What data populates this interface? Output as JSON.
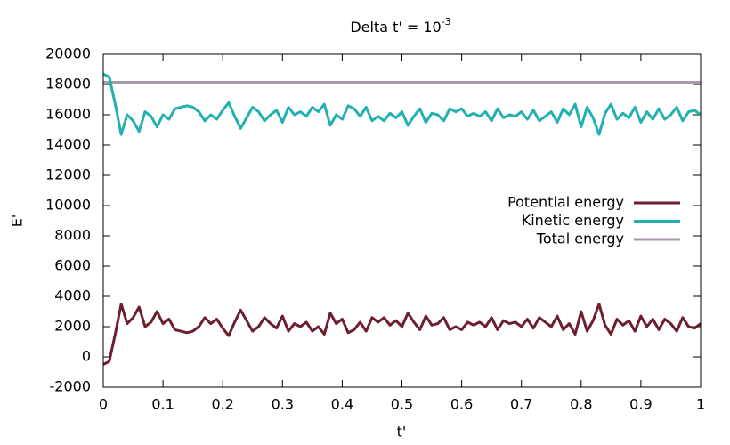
{
  "chart_data": {
    "type": "line",
    "title": {
      "text": "Delta t' = 10",
      "superscript": "-3"
    },
    "x_label": "t'",
    "y_label": "E'",
    "xlim": [
      0,
      1
    ],
    "ylim": [
      -2000,
      20000
    ],
    "xticks": [
      0,
      0.1,
      0.2,
      0.3,
      0.4,
      0.5,
      0.6,
      0.7,
      0.8,
      0.9,
      1
    ],
    "yticks": [
      -2000,
      0,
      2000,
      4000,
      6000,
      8000,
      10000,
      12000,
      14000,
      16000,
      18000,
      20000
    ],
    "legend": "right",
    "x": [
      0,
      0.01,
      0.02,
      0.03,
      0.04,
      0.05,
      0.06,
      0.07,
      0.08,
      0.09,
      0.1,
      0.11,
      0.12,
      0.13,
      0.14,
      0.15,
      0.16,
      0.17,
      0.18,
      0.19,
      0.2,
      0.21,
      0.22,
      0.23,
      0.24,
      0.25,
      0.26,
      0.27,
      0.28,
      0.29,
      0.3,
      0.31,
      0.32,
      0.33,
      0.34,
      0.35,
      0.36,
      0.37,
      0.38,
      0.39,
      0.4,
      0.41,
      0.42,
      0.43,
      0.44,
      0.45,
      0.46,
      0.47,
      0.48,
      0.49,
      0.5,
      0.51,
      0.52,
      0.53,
      0.54,
      0.55,
      0.56,
      0.57,
      0.58,
      0.59,
      0.6,
      0.61,
      0.62,
      0.63,
      0.64,
      0.65,
      0.66,
      0.67,
      0.68,
      0.69,
      0.7,
      0.71,
      0.72,
      0.73,
      0.74,
      0.75,
      0.76,
      0.77,
      0.78,
      0.79,
      0.8,
      0.81,
      0.82,
      0.83,
      0.84,
      0.85,
      0.86,
      0.87,
      0.88,
      0.89,
      0.9,
      0.91,
      0.92,
      0.93,
      0.94,
      0.95,
      0.96,
      0.97,
      0.98,
      0.99,
      1
    ],
    "series": [
      {
        "name": "Potential energy",
        "color": "#6e1f2f",
        "values": [
          -500,
          -300,
          1500,
          3500,
          2200,
          2600,
          3300,
          2000,
          2300,
          3000,
          2200,
          2500,
          1800,
          1700,
          1600,
          1700,
          2000,
          2600,
          2200,
          2500,
          1900,
          1400,
          2300,
          3100,
          2400,
          1700,
          2000,
          2600,
          2200,
          1900,
          2700,
          1700,
          2200,
          2000,
          2300,
          1700,
          2000,
          1500,
          2900,
          2200,
          2500,
          1600,
          1800,
          2300,
          1700,
          2600,
          2300,
          2600,
          2100,
          2400,
          2000,
          2900,
          2300,
          1800,
          2700,
          2100,
          2200,
          2600,
          1800,
          2000,
          1800,
          2300,
          2100,
          2300,
          2000,
          2600,
          1800,
          2400,
          2200,
          2300,
          2000,
          2500,
          1900,
          2600,
          2300,
          2000,
          2700,
          1800,
          2200,
          1500,
          3000,
          1700,
          2400,
          3500,
          2100,
          1500,
          2500,
          2100,
          2400,
          1700,
          2700,
          2000,
          2500,
          1800,
          2500,
          2200,
          1700,
          2600,
          2000,
          1900,
          2200
        ]
      },
      {
        "name": "Kinetic energy",
        "color": "#22b0b0",
        "values": [
          18700,
          18500,
          16700,
          14700,
          16000,
          15600,
          14900,
          16200,
          15900,
          15200,
          16000,
          15700,
          16400,
          16500,
          16600,
          16500,
          16200,
          15600,
          16000,
          15700,
          16300,
          16800,
          15900,
          15100,
          15800,
          16500,
          16200,
          15600,
          16000,
          16300,
          15500,
          16500,
          16000,
          16200,
          15900,
          16500,
          16200,
          16700,
          15300,
          16000,
          15700,
          16600,
          16400,
          15900,
          16500,
          15600,
          15900,
          15600,
          16100,
          15800,
          16200,
          15300,
          15900,
          16400,
          15500,
          16100,
          16000,
          15600,
          16400,
          16200,
          16400,
          15900,
          16100,
          15900,
          16200,
          15600,
          16400,
          15800,
          16000,
          15900,
          16200,
          15700,
          16300,
          15600,
          15900,
          16200,
          15500,
          16400,
          16000,
          16700,
          15200,
          16500,
          15800,
          14700,
          16100,
          16700,
          15700,
          16100,
          15800,
          16500,
          15500,
          16200,
          15700,
          16400,
          15700,
          16000,
          16500,
          15600,
          16200,
          16300,
          16000
        ]
      },
      {
        "name": "Total energy",
        "color": "#a99aab",
        "values": [
          18150,
          18150,
          18150,
          18150,
          18150,
          18150,
          18150,
          18150,
          18150,
          18150,
          18150,
          18150,
          18150,
          18150,
          18150,
          18150,
          18150,
          18150,
          18150,
          18150,
          18150,
          18150,
          18150,
          18150,
          18150,
          18150,
          18150,
          18150,
          18150,
          18150,
          18150,
          18150,
          18150,
          18150,
          18150,
          18150,
          18150,
          18150,
          18150,
          18150,
          18150,
          18150,
          18150,
          18150,
          18150,
          18150,
          18150,
          18150,
          18150,
          18150,
          18150,
          18150,
          18150,
          18150,
          18150,
          18150,
          18150,
          18150,
          18150,
          18150,
          18150,
          18150,
          18150,
          18150,
          18150,
          18150,
          18150,
          18150,
          18150,
          18150,
          18150,
          18150,
          18150,
          18150,
          18150,
          18150,
          18150,
          18150,
          18150,
          18150,
          18150,
          18150,
          18150,
          18150,
          18150,
          18150,
          18150,
          18150,
          18150,
          18150,
          18150,
          18150,
          18150,
          18150,
          18150,
          18150,
          18150,
          18150,
          18150,
          18150,
          18150
        ]
      }
    ]
  }
}
